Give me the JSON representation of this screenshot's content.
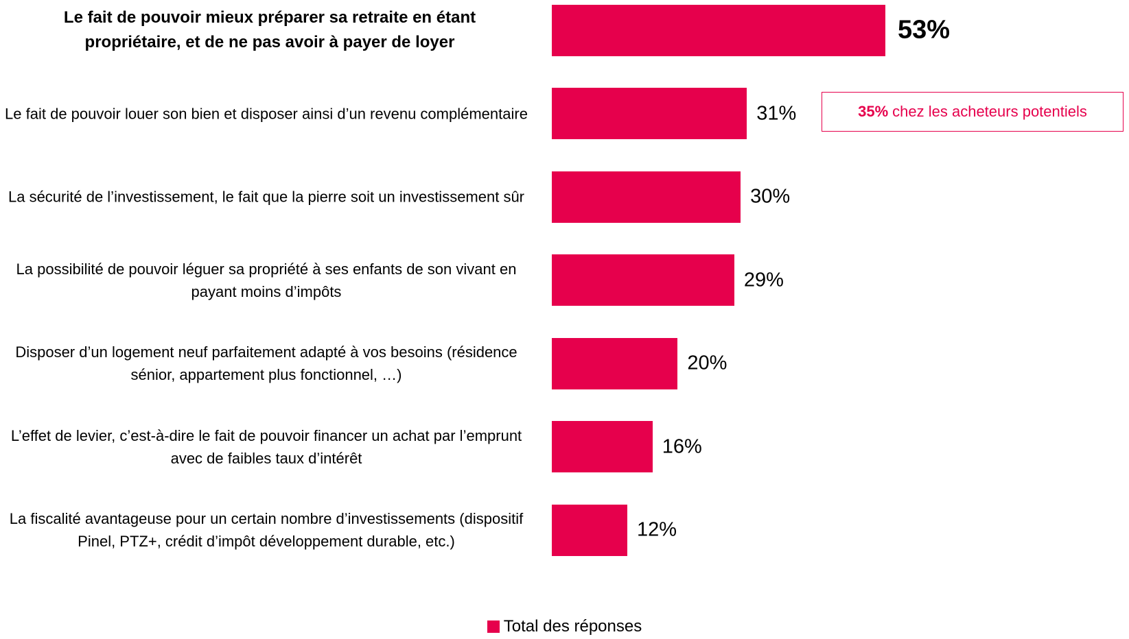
{
  "chart_data": {
    "type": "hbar",
    "categories": [
      "Le fait de pouvoir mieux préparer sa retraite en étant propriétaire, et de ne pas avoir à payer de loyer",
      "Le fait de pouvoir louer son bien et disposer ainsi d’un revenu complémentaire",
      "La sécurité de l’investissement, le fait que la pierre soit un investissement sûr",
      "La possibilité de pouvoir léguer sa propriété à ses enfants de son vivant en payant moins d’impôts",
      "Disposer d’un logement neuf parfaitement adapté à vos besoins (résidence sénior, appartement plus fonctionnel, …)",
      "L’effet de levier, c’est-à-dire le fait de pouvoir financer un achat par l’emprunt avec de faibles taux d’intérêt",
      "La fiscalité avantageuse pour un certain nombre d’investissements (dispositif Pinel, PTZ+, crédit d’impôt développement durable, etc.)"
    ],
    "series": [
      {
        "name": "Total des réponses",
        "color": "#e6004c",
        "values": [
          53,
          31,
          30,
          29,
          20,
          16,
          12
        ],
        "value_labels": [
          "53%",
          "31%",
          "30%",
          "29%",
          "20%",
          "16%",
          "12%"
        ]
      }
    ],
    "highlighted": [
      0
    ],
    "annotation": {
      "bold": "35%",
      "text": "chez les acheteurs potentiels"
    }
  }
}
